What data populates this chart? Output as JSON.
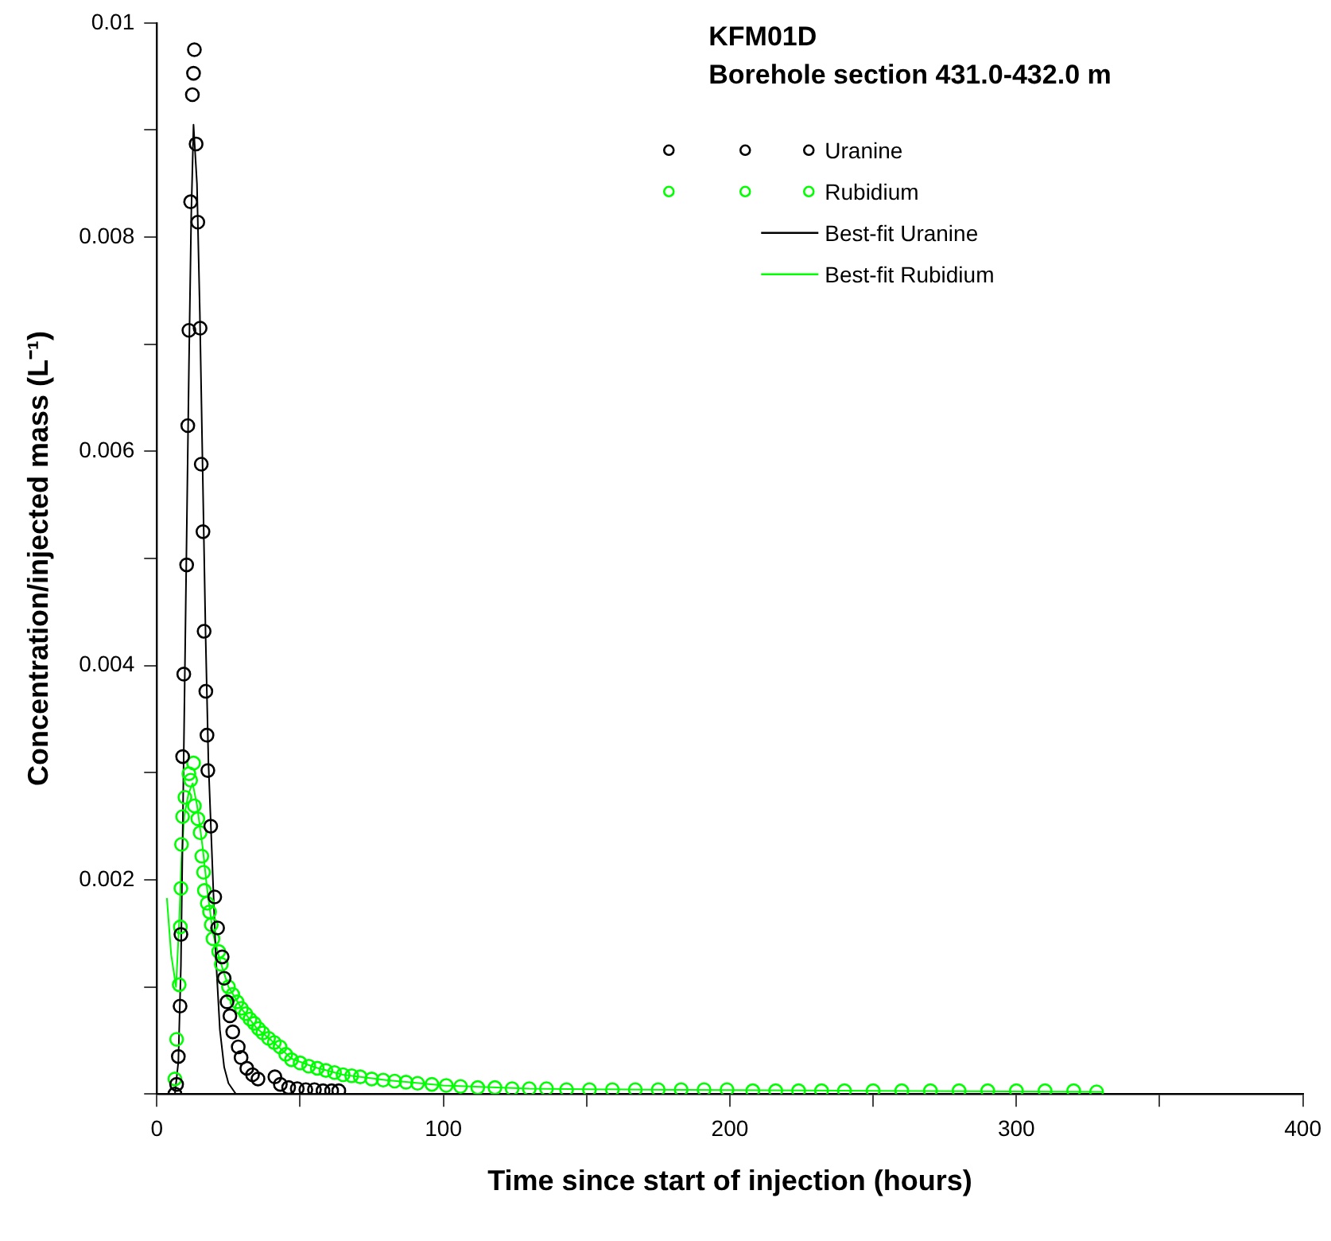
{
  "chart_data": {
    "type": "scatter",
    "title": "KFM01D",
    "subtitle": "Borehole section 431.0-432.0 m",
    "xlabel": "Time since start of injection (hours)",
    "ylabel": "Concentration/injected mass (L⁻¹)",
    "xlim": [
      0,
      400
    ],
    "xticks": [
      0,
      {
        "value": 50,
        "label": null
      },
      100,
      {
        "value": 150,
        "label": null
      },
      200,
      {
        "value": 250,
        "label": null
      },
      300,
      {
        "value": 350,
        "label": null
      },
      400
    ],
    "ylim": [
      0,
      0.01
    ],
    "yticks": [
      {
        "value": 0,
        "label": null
      },
      {
        "value": 0.001,
        "label": null
      },
      0.002,
      {
        "value": 0.003,
        "label": null
      },
      0.004,
      {
        "value": 0.005,
        "label": null
      },
      0.006,
      {
        "value": 0.007,
        "label": null
      },
      0.008,
      {
        "value": 0.009,
        "label": null
      },
      0.01
    ],
    "grid": false,
    "legend": "top right",
    "series": [
      {
        "name": "Uranine",
        "type": "scatter",
        "marker": "circle",
        "color": "#000000",
        "x": [
          6.3,
          6.9,
          7.5,
          8.1,
          8.4,
          9.0,
          9.4,
          10.4,
          10.8,
          11.2,
          11.8,
          12.4,
          12.8,
          13.1,
          13.7,
          14.3,
          15.1,
          15.5,
          16.1,
          16.5,
          17.1,
          17.5,
          17.8,
          18.8,
          20.2,
          21.2,
          22.8,
          23.5,
          24.5,
          25.5,
          26.5,
          28.4,
          29.4,
          31.4,
          33.4,
          35.3,
          41.2,
          43.1,
          46,
          49,
          52,
          55,
          58,
          61,
          63.5
        ],
        "values": [
          0.0,
          9e-05,
          0.00035,
          0.00082,
          0.00149,
          0.00315,
          0.00392,
          0.00494,
          0.00624,
          0.00713,
          0.00833,
          0.00933,
          0.00953,
          0.00975,
          0.00887,
          0.00814,
          0.00715,
          0.00588,
          0.00525,
          0.00432,
          0.00376,
          0.00335,
          0.00302,
          0.0025,
          0.00184,
          0.00155,
          0.00128,
          0.00108,
          0.00086,
          0.00073,
          0.00058,
          0.00044,
          0.00034,
          0.00024,
          0.00018,
          0.00014,
          0.00016,
          9e-05,
          6e-05,
          5e-05,
          4e-05,
          4e-05,
          3e-05,
          3e-05,
          3e-05
        ]
      },
      {
        "name": "Rubidium",
        "type": "scatter",
        "marker": "circle",
        "color": "#00ff00",
        "x": [
          6.3,
          6.9,
          7.8,
          8.2,
          8.4,
          8.6,
          9.0,
          9.8,
          11.2,
          11.8,
          12.8,
          13.1,
          14.3,
          15.1,
          15.7,
          16.3,
          16.6,
          17.6,
          18.4,
          19.0,
          19.6,
          21.6,
          22.5,
          23.5,
          25,
          26.5,
          28,
          29.5,
          31,
          32.5,
          34,
          35.5,
          37,
          39,
          41,
          43,
          45,
          47,
          50,
          53,
          56,
          59,
          62,
          65,
          68,
          71,
          75,
          79,
          83,
          87,
          91,
          96,
          101,
          106,
          112,
          118,
          124,
          130,
          136,
          143,
          151,
          159,
          167,
          175,
          183,
          191,
          199,
          208,
          216,
          224,
          232,
          240,
          250,
          260,
          270,
          280,
          290,
          300,
          310,
          320,
          328
        ],
        "values": [
          0.00014,
          0.00051,
          0.00102,
          0.00156,
          0.00192,
          0.00233,
          0.00259,
          0.00277,
          0.00299,
          0.00293,
          0.00309,
          0.00269,
          0.00257,
          0.00244,
          0.00222,
          0.00207,
          0.0019,
          0.00178,
          0.0017,
          0.00158,
          0.00145,
          0.00133,
          0.00121,
          0.00108,
          0.001,
          0.00093,
          0.00086,
          0.0008,
          0.00075,
          0.0007,
          0.00066,
          0.00061,
          0.00057,
          0.00052,
          0.00048,
          0.00044,
          0.00037,
          0.00032,
          0.00029,
          0.00026,
          0.00024,
          0.00022,
          0.0002,
          0.00018,
          0.00017,
          0.00016,
          0.00014,
          0.00013,
          0.00012,
          0.00011,
          0.0001,
          9e-05,
          8e-05,
          7e-05,
          6e-05,
          6e-05,
          5e-05,
          5e-05,
          5e-05,
          4e-05,
          4e-05,
          4e-05,
          4e-05,
          4e-05,
          4e-05,
          4e-05,
          4e-05,
          3e-05,
          3e-05,
          3e-05,
          3e-05,
          3e-05,
          3e-05,
          3e-05,
          3e-05,
          3e-05,
          3e-05,
          3e-05,
          3e-05,
          3e-05,
          2e-05
        ]
      },
      {
        "name": "Best-fit Uranine",
        "type": "line",
        "marker": "none",
        "line_style": "solid",
        "color": "#000000",
        "x": [
          6.3,
          7.5,
          8.4,
          9.4,
          10.4,
          11.2,
          12,
          12.8,
          14,
          15,
          16,
          17,
          18,
          19,
          20,
          20.6,
          22,
          23.5,
          25,
          27.6,
          63.5
        ],
        "values": [
          0,
          0.0003,
          0.0012,
          0.0032,
          0.0052,
          0.0068,
          0.0082,
          0.00905,
          0.0085,
          0.0073,
          0.0058,
          0.0043,
          0.0031,
          0.0024,
          0.0017,
          0.00128,
          0.0006,
          0.00025,
          0.0001,
          0,
          0
        ]
      },
      {
        "name": "Best-fit Rubidium",
        "type": "line",
        "marker": "none",
        "line_style": "solid",
        "color": "#00ff00",
        "x": [
          3.5,
          5,
          6.7,
          7.8,
          8.6,
          9.6,
          11,
          12.5,
          14,
          16,
          17.6,
          19.6,
          22,
          25,
          30,
          35,
          40,
          47,
          55,
          65,
          80,
          100,
          130,
          170,
          250,
          330
        ],
        "values": [
          0.00183,
          0.0013,
          0.001,
          0.0016,
          0.0022,
          0.0026,
          0.0028,
          0.0029,
          0.0027,
          0.0023,
          0.0019,
          0.0015,
          0.00125,
          0.001,
          0.00078,
          0.00061,
          0.0005,
          0.00033,
          0.00025,
          0.00018,
          0.00013,
          8e-05,
          5e-05,
          4e-05,
          3e-05,
          2e-05
        ]
      }
    ]
  }
}
